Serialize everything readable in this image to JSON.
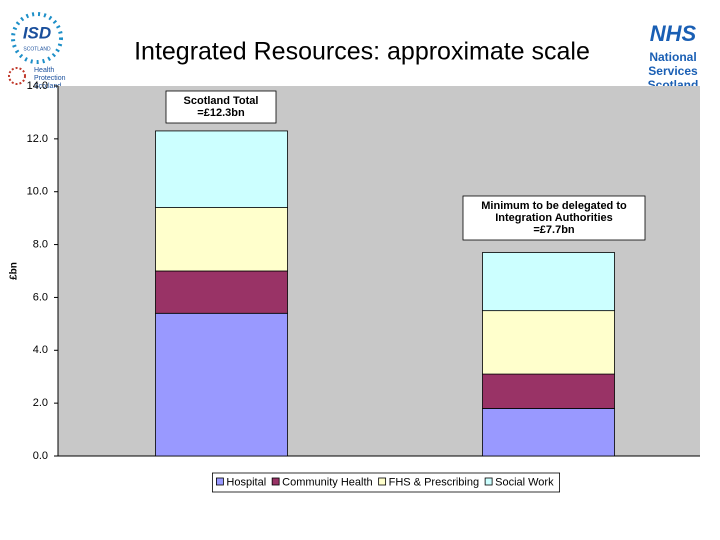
{
  "logos": {
    "isd": "ISD",
    "isd_sub": "SCOTLAND",
    "hps": [
      "Health",
      "Protection",
      "Scotland"
    ],
    "nhs": "NHS",
    "nss": [
      "National",
      "Services",
      "Scotland"
    ]
  },
  "chart_data": {
    "type": "stacked_bar",
    "title": "Integrated Resources: approximate scale",
    "y_label": "£bn",
    "categories": [
      null,
      null
    ],
    "series": [
      {
        "name": "Hospital",
        "color": "#9999ff",
        "values": [
          5.4,
          1.8
        ]
      },
      {
        "name": "Community Health",
        "color": "#993366",
        "values": [
          1.6,
          1.3
        ]
      },
      {
        "name": "FHS & Prescribing",
        "color": "#ffffcc",
        "values": [
          2.4,
          2.4
        ]
      },
      {
        "name": "Social Work",
        "color": "#ccffff",
        "values": [
          2.9,
          2.2
        ]
      }
    ],
    "ylim": [
      0,
      14
    ],
    "yticks": [
      {
        "value": 0,
        "label": "0.0"
      },
      {
        "value": 2,
        "label": "2.0"
      },
      {
        "value": 4,
        "label": "4.0"
      },
      {
        "value": 6,
        "label": "6.0"
      },
      {
        "value": 8,
        "label": "8.0"
      },
      {
        "value": 10,
        "label": "10.0"
      },
      {
        "value": 12,
        "label": "12.0"
      },
      {
        "value": 14,
        "label": "14.0"
      }
    ],
    "annotations": [
      {
        "lines": [
          "Scotland Total",
          "=£12.3bn"
        ]
      },
      {
        "lines": [
          "Minimum to be delegated to",
          "Integration Authorities",
          "=£7.7bn"
        ]
      }
    ],
    "legend": "bottom"
  }
}
